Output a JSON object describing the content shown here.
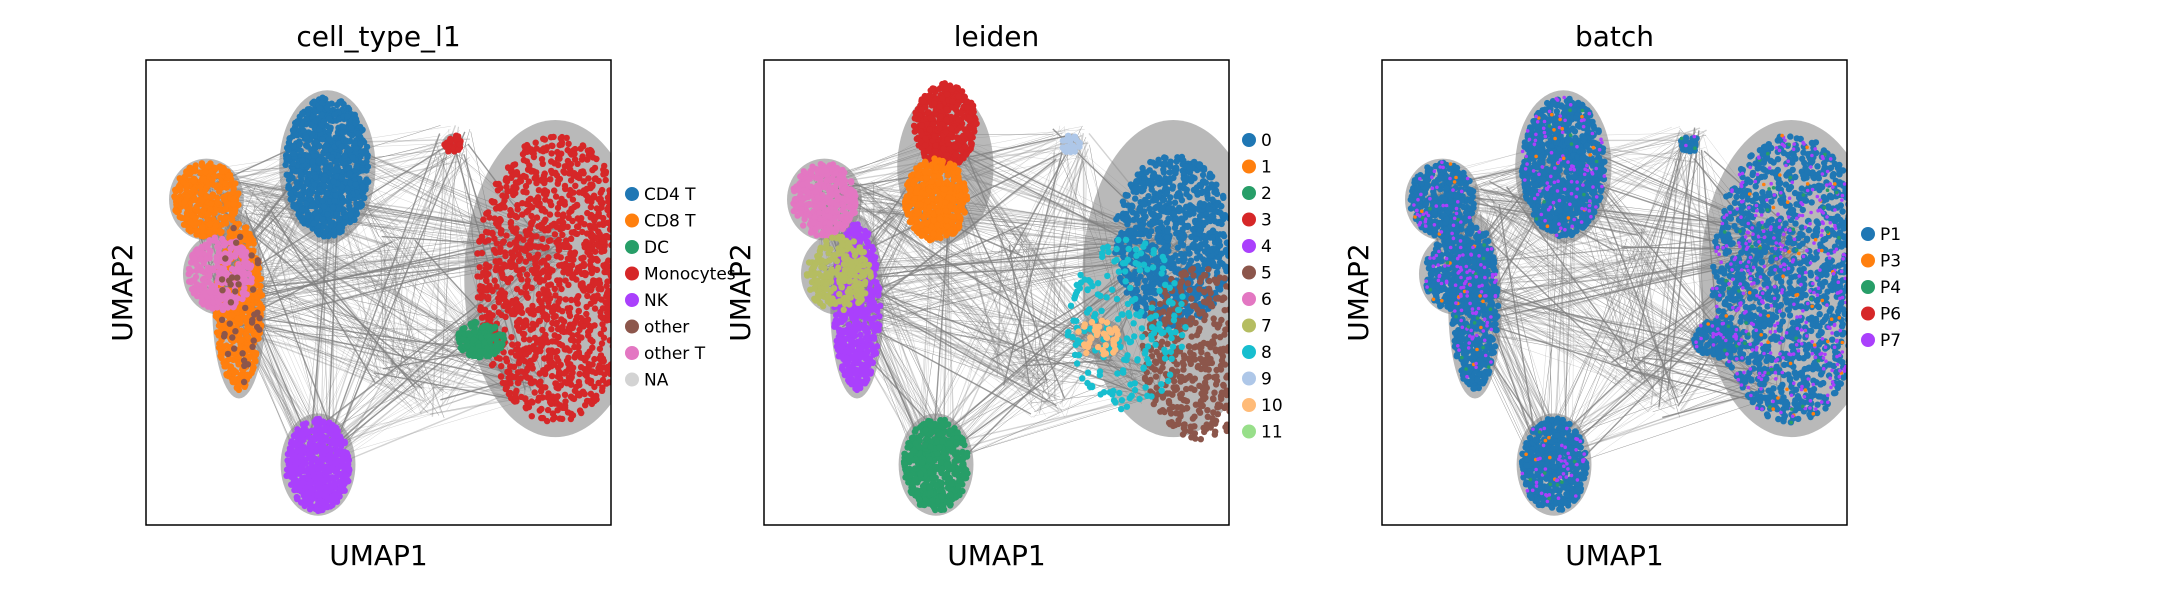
{
  "chart_data": [
    {
      "type": "scatter",
      "title": "cell_type_l1",
      "xlabel": "UMAP1",
      "ylabel": "UMAP2",
      "legend_position": "right",
      "xticks": false,
      "yticks": false,
      "legend": [
        {
          "label": "CD4 T",
          "color": "#1f77b4"
        },
        {
          "label": "CD8 T",
          "color": "#ff7f0e"
        },
        {
          "label": "DC",
          "color": "#279e68"
        },
        {
          "label": "Monocytes",
          "color": "#d62728"
        },
        {
          "label": "NK",
          "color": "#aa40fc"
        },
        {
          "label": "other",
          "color": "#8c564b"
        },
        {
          "label": "other T",
          "color": "#e377c2"
        },
        {
          "label": "NA",
          "color": "#d3d3d3"
        }
      ]
    },
    {
      "type": "scatter",
      "title": "leiden",
      "xlabel": "UMAP1",
      "ylabel": "UMAP2",
      "legend_position": "right",
      "xticks": false,
      "yticks": false,
      "legend": [
        {
          "label": "0",
          "color": "#1f77b4"
        },
        {
          "label": "1",
          "color": "#ff7f0e"
        },
        {
          "label": "2",
          "color": "#279e68"
        },
        {
          "label": "3",
          "color": "#d62728"
        },
        {
          "label": "4",
          "color": "#aa40fc"
        },
        {
          "label": "5",
          "color": "#8c564b"
        },
        {
          "label": "6",
          "color": "#e377c2"
        },
        {
          "label": "7",
          "color": "#b5bd61"
        },
        {
          "label": "8",
          "color": "#17becf"
        },
        {
          "label": "9",
          "color": "#aec7e8"
        },
        {
          "label": "10",
          "color": "#ffbb78"
        },
        {
          "label": "11",
          "color": "#98df8a"
        }
      ]
    },
    {
      "type": "scatter",
      "title": "batch",
      "xlabel": "UMAP1",
      "ylabel": "UMAP2",
      "legend_position": "right",
      "xticks": false,
      "yticks": false,
      "legend": [
        {
          "label": "P1",
          "color": "#1f77b4"
        },
        {
          "label": "P3",
          "color": "#ff7f0e"
        },
        {
          "label": "P4",
          "color": "#279e68"
        },
        {
          "label": "P6",
          "color": "#d62728"
        },
        {
          "label": "P7",
          "color": "#aa40fc"
        }
      ]
    }
  ],
  "edge_color": "#808080"
}
